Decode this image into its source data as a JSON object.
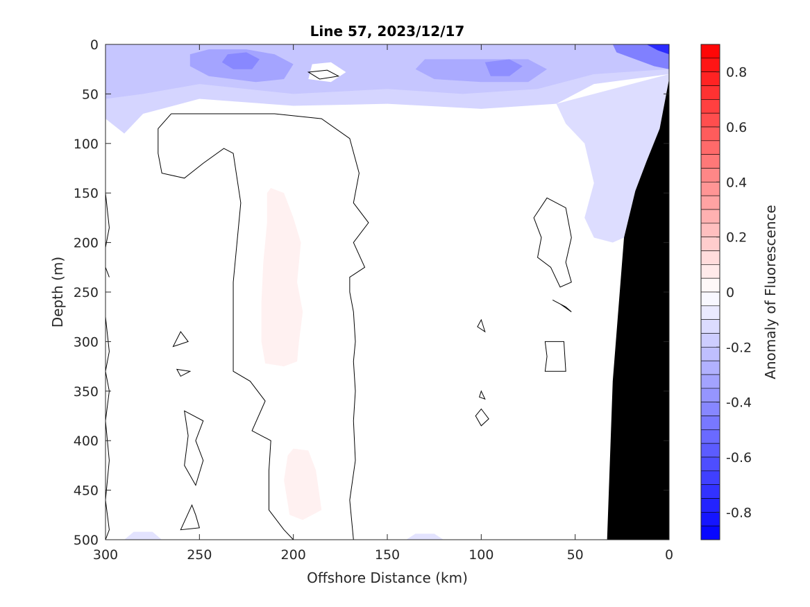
{
  "chart_data": {
    "type": "heatmap",
    "title": "Line 57, 2023/12/17",
    "xlabel": "Offshore Distance (km)",
    "ylabel": "Depth (m)",
    "colorbar_label": "Anomaly of Fluorescence",
    "xlim": [
      300,
      0
    ],
    "ylim": [
      0,
      500
    ],
    "x_reversed": true,
    "y_reversed": true,
    "x_ticks": [
      300,
      250,
      200,
      150,
      100,
      50,
      0
    ],
    "y_ticks": [
      0,
      50,
      100,
      150,
      200,
      250,
      300,
      350,
      400,
      450,
      500
    ],
    "clim": [
      -0.9,
      0.9
    ],
    "colorbar_ticks": [
      0.8,
      0.6,
      0.4,
      0.2,
      0,
      -0.2,
      -0.4,
      -0.6,
      -0.8
    ],
    "colorbar_levels": 36,
    "colormap": {
      "negative": "#0000ff",
      "zero": "#ffffff",
      "positive": "#ff0000"
    },
    "bathymetry_color": "#000000",
    "bathymetry": [
      {
        "x": 0,
        "depth": 35
      },
      {
        "x": 5,
        "depth": 85
      },
      {
        "x": 12,
        "depth": 118
      },
      {
        "x": 18,
        "depth": 148
      },
      {
        "x": 24,
        "depth": 195
      },
      {
        "x": 30,
        "depth": 340
      },
      {
        "x": 33,
        "depth": 500
      }
    ],
    "anomaly_regions": [
      {
        "label": "surface band",
        "value": -0.15,
        "x_range": [
          300,
          0
        ],
        "depth_range": [
          0,
          60
        ]
      },
      {
        "label": "surface patch",
        "value": -0.3,
        "x_range": [
          240,
          200
        ],
        "depth_range": [
          0,
          40
        ]
      },
      {
        "label": "surface patch",
        "value": -0.3,
        "x_range": [
          95,
          75
        ],
        "depth_range": [
          15,
          40
        ]
      },
      {
        "label": "nearshore patch",
        "value": -0.55,
        "x_range": [
          15,
          0
        ],
        "depth_range": [
          0,
          15
        ]
      },
      {
        "label": "nearshore band",
        "value": -0.1,
        "x_range": [
          55,
          0
        ],
        "depth_range": [
          60,
          200
        ]
      },
      {
        "label": "subsurface patch",
        "value": 0.05,
        "x_range": [
          215,
          195
        ],
        "depth_range": [
          145,
          325
        ]
      },
      {
        "label": "subsurface patch",
        "value": 0.05,
        "x_range": [
          200,
          185
        ],
        "depth_range": [
          410,
          480
        ]
      }
    ]
  }
}
